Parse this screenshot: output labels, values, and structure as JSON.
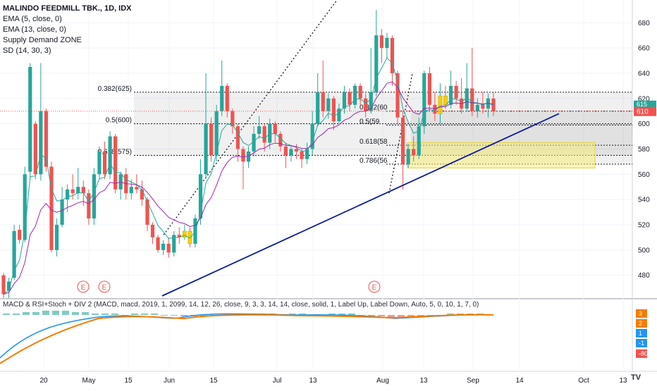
{
  "legend": {
    "title": "MALINDO FEEDMILL TBK., 1D, IDX",
    "lines": [
      "EMA (5, close, 0)",
      "EMA (13, close, 0)",
      "Supply Demand ZONE",
      "SD (14, 30, 3)"
    ]
  },
  "macd_legend": "MACD & RSI+Stoch + DIV 2 (MACD, macd, 2019, 1, 2099, 14, 12, 26, close, 9, 3, 3, 14, 14, close, solid, 1, Label Up, Label Down, Auto, 5, 0, 10, 1, 7, 0)",
  "watermark": "TV",
  "colors": {
    "up": "#26a69a",
    "down": "#ef5350",
    "ema5": "#26a69a",
    "ema13": "#9c27b0",
    "trend": "#0d1a9c",
    "zone": "#f7ed7a",
    "zone_border": "#e6d23a",
    "macd": "#2196f3",
    "signal": "#f57c00"
  },
  "chart_data": {
    "type": "candlestick",
    "y_axis": {
      "ticks": [
        480,
        500,
        520,
        540,
        560,
        580,
        600,
        620,
        640,
        660,
        680
      ],
      "range": [
        462,
        698
      ]
    },
    "x_axis": {
      "ticks": [
        "20",
        "May",
        "15",
        "Jun",
        "15",
        "Jul",
        "13",
        "Aug",
        "13",
        "Sep",
        "14",
        "Oct",
        "13"
      ]
    },
    "last_price": "610",
    "price_labels": [
      "615",
      "610"
    ],
    "fib_levels": [
      {
        "label": "0.382(625)",
        "value": 625
      },
      {
        "label": "0.5(600)",
        "value": 600
      },
      {
        "label": "0.618(575)",
        "value": 575
      }
    ],
    "fib_levels_right": [
      {
        "label": "0.382(60",
        "value": 610
      },
      {
        "label": "0.5(59",
        "value": 599
      },
      {
        "label": "0.618(58",
        "value": 583
      },
      {
        "label": "0.786(56",
        "value": 568
      }
    ],
    "earnings_markers": [
      "E",
      "E",
      "E"
    ],
    "macd_axis": {
      "ticks": [
        "3",
        "2",
        "1",
        "-1",
        "-80"
      ]
    },
    "candles": [
      [
        480,
        465,
        482,
        462
      ],
      [
        468,
        475,
        478,
        462
      ],
      [
        478,
        515,
        520,
        476
      ],
      [
        516,
        508,
        520,
        505
      ],
      [
        508,
        560,
        566,
        506
      ],
      [
        562,
        645,
        648,
        556
      ],
      [
        600,
        560,
        602,
        556
      ],
      [
        560,
        610,
        648,
        555
      ],
      [
        610,
        566,
        612,
        562
      ],
      [
        566,
        500,
        570,
        498
      ],
      [
        500,
        520,
        525,
        495
      ],
      [
        520,
        540,
        550,
        518
      ],
      [
        540,
        548,
        552,
        530
      ],
      [
        548,
        545,
        560,
        540
      ],
      [
        545,
        550,
        565,
        540
      ],
      [
        550,
        545,
        555,
        535
      ],
      [
        545,
        525,
        548,
        520
      ],
      [
        525,
        560,
        565,
        520
      ],
      [
        560,
        578,
        582,
        556
      ],
      [
        578,
        560,
        586,
        556
      ],
      [
        560,
        590,
        594,
        556
      ],
      [
        590,
        548,
        592,
        545
      ],
      [
        548,
        560,
        562,
        540
      ],
      [
        560,
        545,
        565,
        540
      ],
      [
        545,
        550,
        556,
        540
      ],
      [
        550,
        548,
        560,
        545
      ],
      [
        548,
        540,
        555,
        535
      ],
      [
        540,
        520,
        542,
        515
      ],
      [
        520,
        510,
        522,
        505
      ],
      [
        510,
        500,
        512,
        498
      ],
      [
        500,
        505,
        508,
        496
      ],
      [
        505,
        498,
        510,
        494
      ],
      [
        498,
        512,
        515,
        495
      ],
      [
        512,
        510,
        518,
        505
      ],
      [
        510,
        515,
        520,
        508
      ],
      [
        515,
        505,
        518,
        502
      ],
      [
        505,
        525,
        528,
        502
      ],
      [
        525,
        560,
        572,
        520
      ],
      [
        560,
        600,
        640,
        556
      ],
      [
        600,
        575,
        605,
        570
      ],
      [
        575,
        610,
        615,
        570
      ],
      [
        610,
        630,
        650,
        606
      ],
      [
        630,
        610,
        632,
        605
      ],
      [
        610,
        598,
        612,
        592
      ],
      [
        598,
        580,
        600,
        570
      ],
      [
        580,
        570,
        582,
        548
      ],
      [
        570,
        578,
        582,
        565
      ],
      [
        578,
        592,
        598,
        574
      ],
      [
        592,
        598,
        606,
        588
      ],
      [
        598,
        585,
        600,
        578
      ],
      [
        585,
        600,
        604,
        580
      ],
      [
        600,
        592,
        602,
        585
      ],
      [
        592,
        582,
        594,
        578
      ],
      [
        582,
        575,
        585,
        565
      ],
      [
        575,
        580,
        582,
        570
      ],
      [
        580,
        578,
        584,
        572
      ],
      [
        578,
        572,
        580,
        565
      ],
      [
        572,
        580,
        585,
        568
      ],
      [
        580,
        600,
        610,
        575
      ],
      [
        600,
        625,
        640,
        598
      ],
      [
        625,
        610,
        650,
        605
      ],
      [
        610,
        620,
        624,
        604
      ],
      [
        620,
        602,
        622,
        595
      ],
      [
        602,
        612,
        616,
        600
      ],
      [
        612,
        625,
        630,
        608
      ],
      [
        625,
        615,
        628,
        610
      ],
      [
        615,
        630,
        632,
        612
      ],
      [
        630,
        620,
        632,
        615
      ],
      [
        620,
        610,
        624,
        605
      ],
      [
        610,
        625,
        660,
        608
      ],
      [
        625,
        670,
        690,
        622
      ],
      [
        670,
        660,
        675,
        648
      ],
      [
        660,
        668,
        672,
        652
      ],
      [
        668,
        640,
        670,
        630
      ],
      [
        640,
        605,
        642,
        600
      ],
      [
        605,
        568,
        610,
        548
      ],
      [
        568,
        580,
        584,
        565
      ],
      [
        580,
        575,
        590,
        570
      ],
      [
        575,
        598,
        605,
        572
      ],
      [
        598,
        640,
        642,
        592
      ],
      [
        640,
        615,
        645,
        610
      ],
      [
        615,
        608,
        625,
        602
      ],
      [
        608,
        622,
        632,
        600
      ],
      [
        622,
        615,
        630,
        612
      ],
      [
        615,
        630,
        642,
        612
      ],
      [
        630,
        620,
        634,
        615
      ],
      [
        620,
        612,
        636,
        608
      ],
      [
        612,
        628,
        648,
        610
      ],
      [
        628,
        610,
        660,
        606
      ],
      [
        610,
        615,
        620,
        605
      ],
      [
        615,
        612,
        625,
        608
      ],
      [
        612,
        620,
        624,
        605
      ],
      [
        620,
        610,
        625,
        606
      ]
    ],
    "yellow_candles": [
      34,
      35,
      82,
      83
    ],
    "macd_hist": [
      1,
      1,
      2,
      2,
      3,
      3,
      3,
      2,
      2,
      1,
      1,
      1,
      0,
      1,
      1,
      1,
      0,
      0,
      -1,
      -1,
      -1,
      -1,
      0,
      0,
      1,
      1,
      1,
      1,
      0,
      1,
      1,
      0,
      0,
      1,
      1,
      1,
      0,
      -1,
      -1,
      -2,
      -2,
      -2,
      -1,
      -1,
      0,
      1,
      1,
      1,
      1,
      0
    ]
  }
}
